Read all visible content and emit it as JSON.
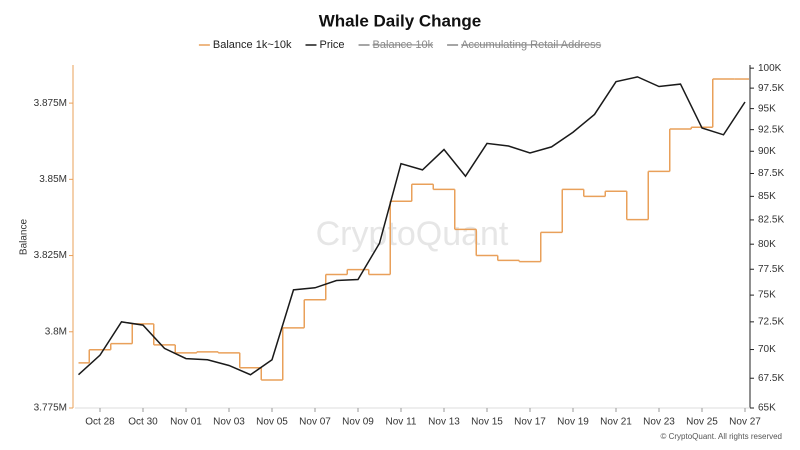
{
  "chart_data": {
    "type": "line",
    "title": "Whale Daily Change",
    "watermark": "CryptoQuant",
    "footer": "© CryptoQuant. All rights reserved",
    "y_label": "Balance",
    "categories": [
      null,
      "Oct 28",
      null,
      "Oct 30",
      null,
      "Nov 01",
      null,
      "Nov 03",
      null,
      "Nov 05",
      null,
      "Nov 07",
      null,
      "Nov 09",
      null,
      "Nov 11",
      null,
      "Nov 13",
      null,
      "Nov 15",
      null,
      "Nov 17",
      null,
      "Nov 19",
      null,
      "Nov 21",
      null,
      "Nov 23",
      null,
      "Nov 25",
      null,
      "Nov 27"
    ],
    "ylim": [
      3775000,
      3887500
    ],
    "yticks": [
      {
        "value": 3775000,
        "label": "3.775M"
      },
      {
        "value": 3800000,
        "label": "3.8M"
      },
      {
        "value": 3825000,
        "label": "3.825M"
      },
      {
        "value": 3850000,
        "label": "3.85M"
      },
      {
        "value": 3875000,
        "label": "3.875M"
      }
    ],
    "y2lim": [
      65000,
      100400
    ],
    "y2_scale": "log",
    "y2ticks": [
      {
        "value": 65000,
        "label": "65K"
      },
      {
        "value": 67500,
        "label": "67.5K"
      },
      {
        "value": 70000,
        "label": "70K"
      },
      {
        "value": 72500,
        "label": "72.5K"
      },
      {
        "value": 75000,
        "label": "75K"
      },
      {
        "value": 77500,
        "label": "77.5K"
      },
      {
        "value": 80000,
        "label": "80K"
      },
      {
        "value": 82500,
        "label": "82.5K"
      },
      {
        "value": 85000,
        "label": "85K"
      },
      {
        "value": 87500,
        "label": "87.5K"
      },
      {
        "value": 90000,
        "label": "90K"
      },
      {
        "value": 92500,
        "label": "92.5K"
      },
      {
        "value": 95000,
        "label": "95K"
      },
      {
        "value": 97500,
        "label": "97.5K"
      },
      {
        "value": 100000,
        "label": "100K"
      }
    ],
    "series": [
      {
        "name": "Balance 1k~10k",
        "color": "#e9a05a",
        "step": true,
        "values": [
          3789800,
          3794100,
          3796100,
          3802600,
          3795700,
          3793100,
          3793400,
          3793100,
          3788200,
          3784200,
          3801300,
          3810500,
          3818800,
          3820400,
          3818800,
          3842800,
          3848400,
          3846700,
          3833600,
          3825000,
          3823400,
          3823000,
          3832600,
          3846700,
          3844400,
          3846100,
          3836800,
          3852600,
          3866500,
          3867100,
          3882900,
          3882900
        ]
      },
      {
        "name": "Price",
        "color": "#1a1a1a",
        "axis": "y2",
        "values": [
          67800,
          69500,
          72500,
          72200,
          70100,
          69200,
          69100,
          68600,
          67800,
          69100,
          75500,
          75700,
          76400,
          76500,
          80100,
          88600,
          87900,
          90200,
          87200,
          90900,
          90600,
          89800,
          90500,
          92200,
          94300,
          98300,
          98900,
          97700,
          98000,
          92700,
          91900,
          95800
        ]
      },
      {
        "name": "Balance 10k",
        "color": "#888888",
        "hidden": true
      },
      {
        "name": "Accumulating Retail Address",
        "color": "#888888",
        "hidden": true
      }
    ]
  }
}
